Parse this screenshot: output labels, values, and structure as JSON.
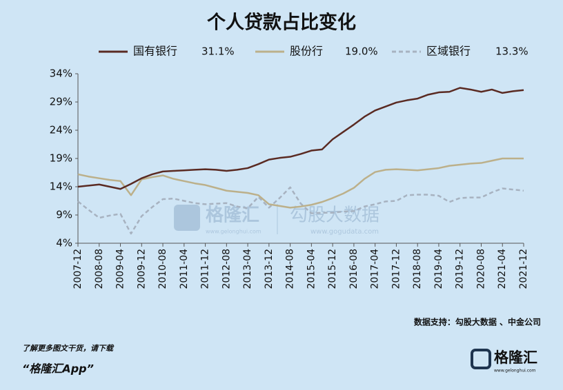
{
  "chart_data": {
    "type": "line",
    "title": "个人贷款占比变化",
    "categories": [
      "2007-12",
      null,
      "2008-08",
      null,
      "2009-04",
      null,
      "2009-12",
      null,
      "2010-08",
      null,
      "2011-04",
      null,
      "2011-12",
      null,
      "2012-08",
      null,
      "2013-04",
      null,
      "2013-12",
      null,
      "2014-08",
      null,
      "2015-04",
      null,
      "2015-12",
      null,
      "2016-08",
      null,
      "2017-04",
      null,
      "2017-12",
      null,
      "2018-08",
      null,
      "2019-04",
      null,
      "2019-12",
      null,
      "2020-08",
      null,
      "2021-04",
      null,
      "2021-12"
    ],
    "series": [
      {
        "name": "国有银行",
        "legend_value": "31.1%",
        "color": "#5a2a22",
        "dashed": false,
        "values": [
          14.0,
          14.2,
          14.4,
          14.0,
          13.6,
          14.5,
          15.5,
          16.2,
          16.7,
          16.8,
          16.9,
          17.0,
          17.1,
          17.0,
          16.8,
          17.0,
          17.3,
          18.0,
          18.8,
          19.1,
          19.3,
          19.8,
          20.4,
          20.6,
          22.4,
          23.7,
          25.0,
          26.4,
          27.5,
          28.2,
          28.9,
          29.3,
          29.6,
          30.3,
          30.7,
          30.8,
          31.5,
          31.2,
          30.8,
          31.2,
          30.6,
          30.9,
          31.1
        ]
      },
      {
        "name": "股份行",
        "legend_value": "19.0%",
        "color": "#bcb08a",
        "dashed": false,
        "values": [
          16.2,
          15.8,
          15.5,
          15.2,
          15.0,
          12.5,
          15.3,
          15.7,
          16.0,
          15.4,
          15.0,
          14.6,
          14.3,
          13.8,
          13.3,
          13.1,
          12.9,
          12.5,
          10.9,
          10.6,
          10.3,
          10.5,
          10.8,
          11.3,
          12.0,
          12.8,
          13.8,
          15.4,
          16.6,
          17.0,
          17.1,
          17.0,
          16.9,
          17.1,
          17.3,
          17.7,
          17.9,
          18.1,
          18.2,
          18.6,
          19.0,
          19.0,
          19.0
        ]
      },
      {
        "name": "区域银行",
        "legend_value": "13.3%",
        "color": "#a7b2c0",
        "dashed": true,
        "values": [
          11.4,
          9.9,
          8.5,
          8.9,
          9.2,
          5.7,
          8.8,
          10.4,
          11.8,
          11.9,
          11.5,
          11.1,
          10.9,
          11.0,
          11.1,
          10.5,
          10.2,
          12.2,
          10.3,
          12.0,
          13.9,
          11.0,
          9.3,
          9.4,
          9.4,
          9.6,
          9.7,
          10.5,
          10.9,
          11.4,
          11.5,
          12.5,
          12.6,
          12.6,
          12.4,
          11.3,
          12.0,
          12.1,
          12.1,
          13.0,
          13.7,
          13.5,
          13.3
        ]
      }
    ],
    "ylim": [
      4,
      34
    ],
    "yticks": [
      {
        "value": 4,
        "label": "4%"
      },
      {
        "value": 9,
        "label": "9%"
      },
      {
        "value": 14,
        "label": "14%"
      },
      {
        "value": 19,
        "label": "19%"
      },
      {
        "value": 24,
        "label": "24%"
      },
      {
        "value": 29,
        "label": "29%"
      },
      {
        "value": 34,
        "label": "34%"
      }
    ],
    "grid": false,
    "source": "数据支持：勾股大数据 、中金公司"
  },
  "watermark": {
    "brand": "格隆汇",
    "brand_url": "www.gelonghui.com",
    "partner": "勾股大数据",
    "partner_url": "www.gogudata.com"
  },
  "footer": {
    "line1": "了解更多图文干货，请下载",
    "line2": "“格隆汇App”",
    "logo": "格隆汇",
    "logo_url": "www.gelonghui.com"
  }
}
